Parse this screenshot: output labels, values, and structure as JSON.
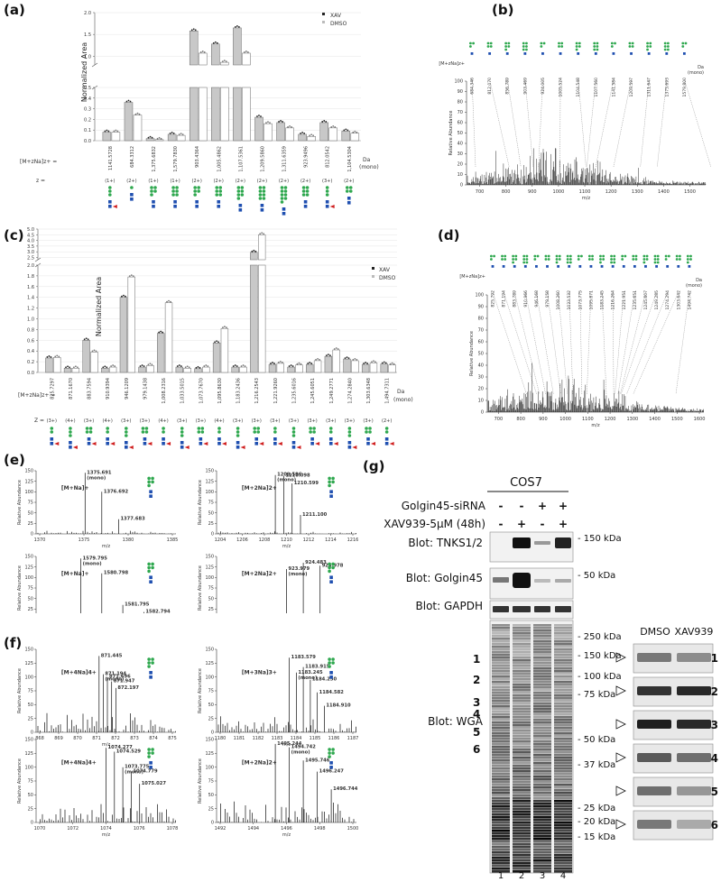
{
  "panels": {
    "a": {
      "letter": "(a)",
      "ylabel": "Normalized Area",
      "legend": [
        "XAV",
        "DMSO"
      ],
      "mz_prefix": "[M+zNa]z+ =",
      "z_prefix": "z =",
      "unit": [
        "Da",
        "(mono)"
      ],
      "yticks_low": [
        "0.0",
        "0.1",
        "0.2",
        "0.3",
        "0.4",
        "0.5"
      ],
      "yticks_high": [
        "1.0",
        "1.5",
        "2.0"
      ],
      "mz": [
        "1141.5728",
        "684.3312",
        "1,375.6832",
        "1,579.7830",
        "903.4364",
        "1,005.4862",
        "1,107.5361",
        "1,209.5860",
        "1,311.6359",
        "923.9496",
        "812.0542",
        "1,104.5304"
      ],
      "z": [
        "(1+)",
        "(2+)",
        "(1+)",
        "(1+)",
        "(2+)",
        "(2+)",
        "(2+)",
        "(2+)",
        "(2+)",
        "(2+)",
        "(3+)",
        "(2+)"
      ]
    },
    "b": {
      "letter": "(b)",
      "ylabel": "Relative Abundance",
      "xlabel": "m/z",
      "xticks": [
        "700",
        "800",
        "900",
        "1000",
        "1100",
        "1200",
        "1300",
        "1400",
        "1500"
      ],
      "yticks": [
        "0",
        "10",
        "20",
        "30",
        "40",
        "50",
        "60",
        "70",
        "80",
        "90",
        "100"
      ],
      "prefix": "[M+zNa]z+",
      "peaks": [
        "684.346",
        "812.070",
        "856.789",
        "903.469",
        "924.005",
        "1005.524",
        "1104.548",
        "1107.560",
        "1141.584",
        "1209.597",
        "1311.647",
        "1375.693",
        "1579.800"
      ],
      "unit": [
        "Da",
        "(mono)"
      ]
    },
    "c": {
      "letter": "(c)",
      "ylabel": "Normalized Area",
      "legend": [
        "XAV",
        "DMSO"
      ],
      "mz_prefix": "[M+zNa]z+ =",
      "z_prefix": "Z =",
      "unit": [
        "Da",
        "(mono)"
      ],
      "yticks_low": [
        "0.0",
        "0.2",
        "0.4",
        "0.6",
        "0.8",
        "1.0",
        "1.2",
        "1.4",
        "1.6",
        "1.8",
        "2.0"
      ],
      "yticks_high": [
        "2.5",
        "3.0",
        "3.5",
        "4.0",
        "4.5",
        "5.0"
      ],
      "mz": [
        "825.7297",
        "871.1670",
        "883.7594",
        "910.9394",
        "946.1209",
        "979.1438",
        "1,008.2316",
        "1,033.5015",
        "1,073.7670",
        "1,095.8630",
        "1,183.2436",
        "1,216.2543",
        "1,221.9260",
        "1,235.6016",
        "1,245.6051",
        "1,249.2771",
        "1,274.2840",
        "1,303.6348",
        "1,494.7311"
      ],
      "z": [
        "(3+)",
        "(4+)",
        "(3+)",
        "(4+)",
        "(3+)",
        "(3+)",
        "(4+)",
        "(3+)",
        "(3+)",
        "(4+)",
        "(3+)",
        "(3+)",
        "(3+)",
        "(3+)",
        "(3+)",
        "(3+)",
        "(3+)",
        "(3+)",
        "(2+)"
      ]
    },
    "d": {
      "letter": "(d)",
      "ylabel": "Relative Abundance",
      "xlabel": "m/z",
      "xticks": [
        "700",
        "800",
        "900",
        "1000",
        "1100",
        "1200",
        "1300",
        "1400",
        "1500",
        "1600"
      ],
      "yticks": [
        "0",
        "10",
        "20",
        "30",
        "40",
        "50",
        "60",
        "70",
        "80",
        "90",
        "100"
      ],
      "prefix": "[M+zNa]z+",
      "peaks": [
        "825.792",
        "871.194",
        "883.789",
        "910.966",
        "946.168",
        "979.158",
        "1008.260",
        "1033.532",
        "1073.775",
        "1095.871",
        "1183.245",
        "1216.264",
        "1221.951",
        "1235.651",
        "1245.607",
        "1249.285",
        "1274.294",
        "1303.642",
        "1494.742"
      ],
      "unit": [
        "Da",
        "(mono)"
      ]
    },
    "e": {
      "letter": "(e)",
      "spectra": [
        {
          "ion": "[M+Na]+",
          "peaks": [
            "1375.691\n(mono)",
            "1376.692",
            "1377.683"
          ],
          "xticks": [
            "1370",
            "1375",
            "1380",
            "1385"
          ]
        },
        {
          "ion": "[M+2Na]2+",
          "peaks": [
            "1209.596\n(mono)",
            "1210.098",
            "1210.599",
            "1211.100"
          ],
          "xticks": [
            "1204",
            "1206",
            "1208",
            "1210",
            "1212",
            "1214",
            "1216"
          ]
        },
        {
          "ion": "[M+Na]+",
          "peaks": [
            "1579.795\n(mono)",
            "1580.798",
            "1581.795",
            "1582.794"
          ],
          "xticks": [
            "1575",
            "1580",
            "1585",
            "1590"
          ]
        },
        {
          "ion": "[M+2Na]2+",
          "peaks": [
            "923.979\n(mono)",
            "924.483",
            "924.978"
          ],
          "xticks": [
            "920",
            "922",
            "924",
            "926",
            "928"
          ]
        }
      ],
      "ylabel": "Relative Abundance",
      "xlabel": "m/z",
      "yticks": [
        "0",
        "25",
        "50",
        "75",
        "100",
        "125",
        "150"
      ]
    },
    "f": {
      "letter": "(f)",
      "spectra": [
        {
          "ion": "[M+4Na]4+",
          "peaks": [
            "871.445",
            "871.194\n(mono)",
            "871.696",
            "871.947",
            "872.197"
          ],
          "xticks": [
            "868",
            "869",
            "870",
            "871",
            "872",
            "873",
            "874",
            "875"
          ]
        },
        {
          "ion": "[M+3Na]3+",
          "peaks": [
            "1183.579",
            "1183.245\n(mono)",
            "1183.915",
            "1184.250",
            "1184.582",
            "1184.910"
          ],
          "xticks": [
            "1180",
            "1181",
            "1182",
            "1183",
            "1184",
            "1185",
            "1186",
            "1187"
          ]
        },
        {
          "ion": "[M+4Na]4+",
          "peaks": [
            "1074.277",
            "1074.529",
            "1073.775\n(mono)",
            "1074.779",
            "1075.027"
          ],
          "xticks": [
            "1070",
            "1072",
            "1074",
            "1076",
            "1078"
          ]
        },
        {
          "ion": "[M+2Na]2+",
          "peaks": [
            "1495.244",
            "1494.742\n(mono)",
            "1495.746",
            "1496.247",
            "1496.744"
          ],
          "xticks": [
            "1492",
            "1494",
            "1496",
            "1498",
            "1500"
          ]
        }
      ],
      "ylabel": "Relative Abundance",
      "xlabel": "m/z",
      "yticks": [
        "0",
        "25",
        "50",
        "75",
        "100",
        "125",
        "150"
      ]
    },
    "g": {
      "letter": "(g)",
      "cell_line": "COS7",
      "conditions": [
        {
          "label": "Golgin45-siRNA",
          "values": [
            "-",
            "-",
            "+",
            "+"
          ]
        },
        {
          "label": "XAV939-5μM (48h)",
          "values": [
            "-",
            "+",
            "-",
            "+"
          ]
        }
      ],
      "blots": [
        {
          "label": "Blot: TNKS1/2",
          "marker": "- 150 kDa"
        },
        {
          "label": "Blot: Golgin45",
          "marker": "- 50 kDa"
        },
        {
          "label": "Blot: GAPDH",
          "marker": "- 37 kDa"
        },
        {
          "label": "Blot: WGA",
          "markers": [
            "- 250 kDa",
            "- 150 kDa",
            "- 100 kDa",
            "- 75 kDa",
            "- 50 kDa",
            "- 37 kDa",
            "- 25 kDa",
            "- 20 kDa",
            "- 15 kDa"
          ]
        }
      ],
      "band_numbers": [
        "1",
        "2",
        "3",
        "4",
        "5",
        "6"
      ],
      "lanes": [
        "1",
        "2",
        "3",
        "4"
      ],
      "inset_headers": [
        "DMSO",
        "XAV939"
      ],
      "inset_numbers": [
        "1",
        "2",
        "3",
        "4",
        "5",
        "6"
      ]
    }
  },
  "chart_data": [
    {
      "type": "bar",
      "title": "",
      "ylabel": "Normalized Area",
      "categories": [
        "1141.5728",
        "684.3312",
        "1,375.6832",
        "1,579.7830",
        "903.4364",
        "1,005.4862",
        "1,107.5361",
        "1,209.5860",
        "1,311.6359",
        "923.9496",
        "812.0542",
        "1,104.5304"
      ],
      "series": [
        {
          "name": "XAV",
          "values": [
            0.08,
            0.36,
            0.02,
            0.06,
            1.58,
            1.28,
            1.65,
            0.22,
            0.17,
            0.06,
            0.17,
            0.09
          ]
        },
        {
          "name": "DMSO",
          "values": [
            0.08,
            0.24,
            0.01,
            0.05,
            1.07,
            0.86,
            1.07,
            0.16,
            0.12,
            0.04,
            0.12,
            0.07
          ]
        }
      ],
      "ylim": [
        0,
        2.0
      ],
      "legend": "top-right"
    },
    {
      "type": "bar",
      "title": "",
      "ylabel": "Normalized Area",
      "categories": [
        "825.7297",
        "871.1670",
        "883.7594",
        "910.9394",
        "946.1209",
        "979.1438",
        "1,008.2316",
        "1,033.5015",
        "1,073.7670",
        "1,095.8630",
        "1,183.2436",
        "1,216.2543",
        "1,221.9260",
        "1,235.6016",
        "1,245.6051",
        "1,249.2771",
        "1,274.2840",
        "1,303.6348",
        "1,494.7311"
      ],
      "series": [
        {
          "name": "XAV",
          "values": [
            0.27,
            0.08,
            0.6,
            0.08,
            1.4,
            0.1,
            0.73,
            0.1,
            0.07,
            0.55,
            0.1,
            2.95,
            0.15,
            0.1,
            0.15,
            0.3,
            0.25,
            0.15,
            0.16
          ]
        },
        {
          "name": "DMSO",
          "values": [
            0.28,
            0.08,
            0.38,
            0.1,
            1.78,
            0.13,
            1.3,
            0.08,
            0.1,
            0.82,
            0.1,
            4.5,
            0.17,
            0.14,
            0.22,
            0.42,
            0.22,
            0.18,
            0.14
          ]
        }
      ],
      "ylim": [
        0,
        5.0
      ],
      "legend": "top-right"
    }
  ]
}
